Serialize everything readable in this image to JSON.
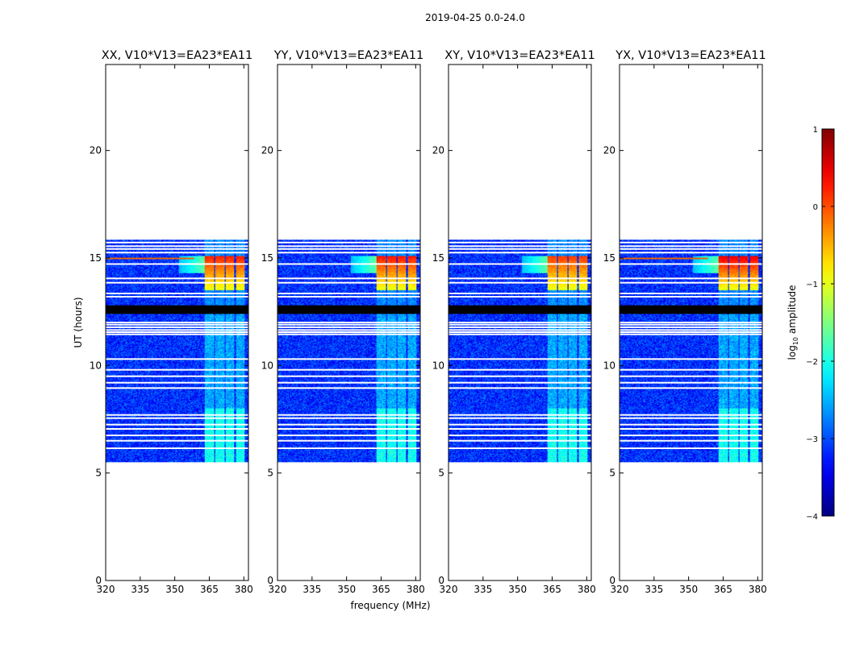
{
  "chart_data": {
    "type": "heatmap",
    "suptitle": "2019-04-25 0.0-24.0",
    "xlabel": "frequency (MHz)",
    "ylabel": "UT (hours)",
    "xlim": [
      320,
      382
    ],
    "ylim": [
      0,
      24
    ],
    "xticks": [
      "320",
      "335",
      "350",
      "365",
      "380"
    ],
    "yticks": [
      "0",
      "5",
      "10",
      "15",
      "20"
    ],
    "data_extent_ut": [
      5.5,
      15.85
    ],
    "flagged_block_ut": [
      12.4,
      12.8
    ],
    "strong_band_ut": [
      13.5,
      15.1
    ],
    "rfi_channels_mhz": [
      [
        363,
        367
      ],
      [
        367.5,
        371.5
      ],
      [
        372,
        376
      ],
      [
        376.5,
        380.5
      ]
    ],
    "panels": [
      {
        "title": "XX, V10*V13=EA23*EA11",
        "rfi_peak_log_amp": 0.25,
        "broadband_line_ut": 14.98
      },
      {
        "title": "YY, V10*V13=EA23*EA11",
        "rfi_peak_log_amp": 0.3,
        "broadband_line_ut": null
      },
      {
        "title": "XY, V10*V13=EA23*EA11",
        "rfi_peak_log_amp": 0.1,
        "broadband_line_ut": null
      },
      {
        "title": "YX, V10*V13=EA23*EA11",
        "rfi_peak_log_amp": 0.5,
        "broadband_line_ut": 14.98
      }
    ],
    "colorbar": {
      "label_prefix": "log",
      "label_sub": "10",
      "label_suffix": " amplitude",
      "ticks": [
        "1",
        "0",
        "−1",
        "−2",
        "−3",
        "−4"
      ],
      "range": [
        -4,
        1
      ],
      "colormap": "jet"
    }
  }
}
